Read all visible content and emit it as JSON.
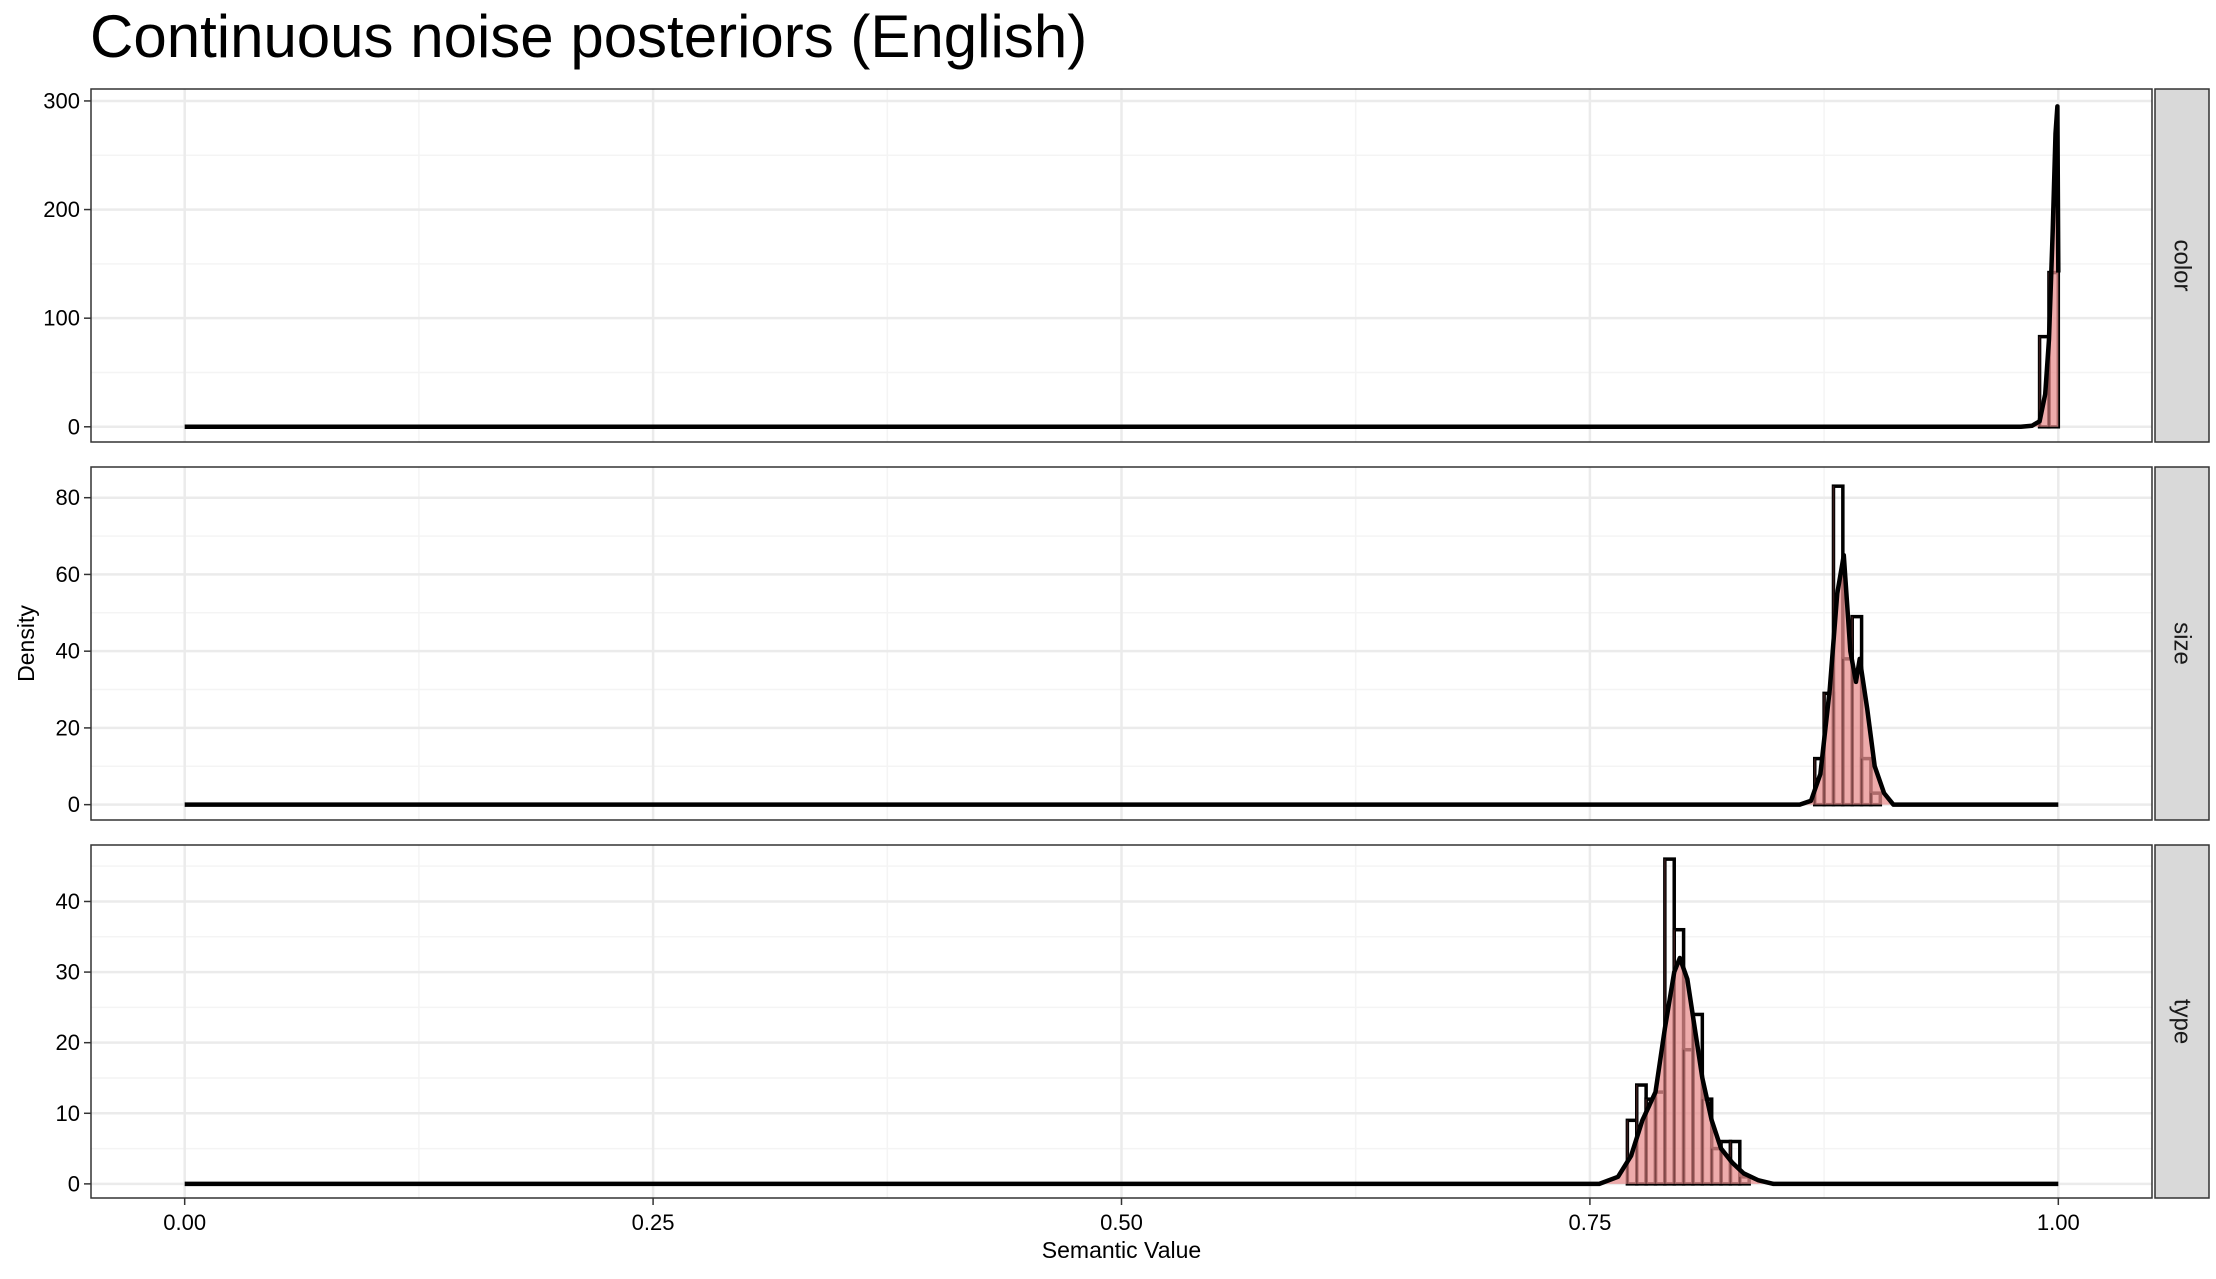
{
  "chart_data": {
    "type": "histogram-density-facets",
    "title": "Continuous noise posteriors (English)",
    "xlabel": "Semantic Value",
    "ylabel": "Density",
    "xlim": [
      -0.05,
      1.05
    ],
    "x_ticks": [
      0,
      0.25,
      0.5,
      0.75,
      1
    ],
    "x_tick_labels": [
      "0.00",
      "0.25",
      "0.50",
      "0.75",
      "1.00"
    ],
    "x_minor_ticks": [
      0.125,
      0.375,
      0.625,
      0.875
    ],
    "grid": true,
    "colors": {
      "panel_border": "#333333",
      "grid_major": "#ebebeb",
      "grid_minor": "#f4f4f4",
      "strip_fill": "#d9d9d9",
      "hist_fill": "#e88f8f",
      "hist_line": "#000000",
      "density_line": "#000000"
    },
    "panels": [
      {
        "strip": "color",
        "ylim": [
          -14,
          311
        ],
        "y_ticks": [
          0,
          100,
          200,
          300
        ],
        "y_tick_labels": [
          "0",
          "100",
          "200",
          "300"
        ],
        "y_minor_ticks": [
          50,
          150,
          250
        ],
        "bin_width": 0.005,
        "bins": [
          {
            "x0": 0.99,
            "x1": 0.995,
            "y": 83
          },
          {
            "x0": 0.995,
            "x1": 1.0,
            "y": 142
          }
        ],
        "density": {
          "x": [
            0,
            0.98,
            0.986,
            0.99,
            0.993,
            0.995,
            0.997,
            0.9985,
            0.9995,
            1.0
          ],
          "y": [
            0,
            0,
            1,
            5,
            30,
            80,
            180,
            270,
            295,
            142
          ]
        }
      },
      {
        "strip": "size",
        "ylim": [
          -4,
          88
        ],
        "y_ticks": [
          0,
          20,
          40,
          60,
          80
        ],
        "y_tick_labels": [
          "0",
          "20",
          "40",
          "60",
          "80"
        ],
        "y_minor_ticks": [
          10,
          30,
          50,
          70
        ],
        "bin_width": 0.005,
        "bins": [
          {
            "x0": 0.87,
            "x1": 0.875,
            "y": 12
          },
          {
            "x0": 0.875,
            "x1": 0.88,
            "y": 29
          },
          {
            "x0": 0.88,
            "x1": 0.885,
            "y": 83
          },
          {
            "x0": 0.885,
            "x1": 0.89,
            "y": 38
          },
          {
            "x0": 0.89,
            "x1": 0.895,
            "y": 49
          },
          {
            "x0": 0.895,
            "x1": 0.9,
            "y": 12
          },
          {
            "x0": 0.9,
            "x1": 0.905,
            "y": 3
          }
        ],
        "density": {
          "x": [
            0,
            0.862,
            0.868,
            0.873,
            0.878,
            0.882,
            0.8855,
            0.889,
            0.892,
            0.894,
            0.898,
            0.902,
            0.907,
            0.912,
            1.0
          ],
          "y": [
            0,
            0,
            1,
            8,
            30,
            55,
            65,
            40,
            32,
            38,
            25,
            10,
            3,
            0,
            0
          ]
        }
      },
      {
        "strip": "type",
        "ylim": [
          -2,
          48
        ],
        "y_ticks": [
          0,
          10,
          20,
          30,
          40
        ],
        "y_tick_labels": [
          "0",
          "10",
          "20",
          "30",
          "40"
        ],
        "y_minor_ticks": [
          5,
          15,
          25,
          35,
          45
        ],
        "bin_width": 0.005,
        "bins": [
          {
            "x0": 0.77,
            "x1": 0.775,
            "y": 9
          },
          {
            "x0": 0.775,
            "x1": 0.78,
            "y": 14
          },
          {
            "x0": 0.78,
            "x1": 0.785,
            "y": 12
          },
          {
            "x0": 0.785,
            "x1": 0.79,
            "y": 13
          },
          {
            "x0": 0.79,
            "x1": 0.795,
            "y": 46
          },
          {
            "x0": 0.795,
            "x1": 0.8,
            "y": 36
          },
          {
            "x0": 0.8,
            "x1": 0.805,
            "y": 19
          },
          {
            "x0": 0.805,
            "x1": 0.81,
            "y": 24
          },
          {
            "x0": 0.81,
            "x1": 0.815,
            "y": 12
          },
          {
            "x0": 0.815,
            "x1": 0.82,
            "y": 5
          },
          {
            "x0": 0.82,
            "x1": 0.825,
            "y": 6
          },
          {
            "x0": 0.825,
            "x1": 0.83,
            "y": 6
          },
          {
            "x0": 0.83,
            "x1": 0.835,
            "y": 1
          }
        ],
        "density": {
          "x": [
            0,
            0.755,
            0.765,
            0.772,
            0.778,
            0.785,
            0.79,
            0.795,
            0.798,
            0.802,
            0.806,
            0.81,
            0.815,
            0.82,
            0.826,
            0.832,
            0.84,
            0.848,
            1.0
          ],
          "y": [
            0,
            0,
            1,
            4,
            9,
            13,
            22,
            30,
            32,
            29,
            22,
            15,
            9,
            5,
            3,
            1.5,
            0.5,
            0,
            0
          ]
        }
      }
    ]
  }
}
